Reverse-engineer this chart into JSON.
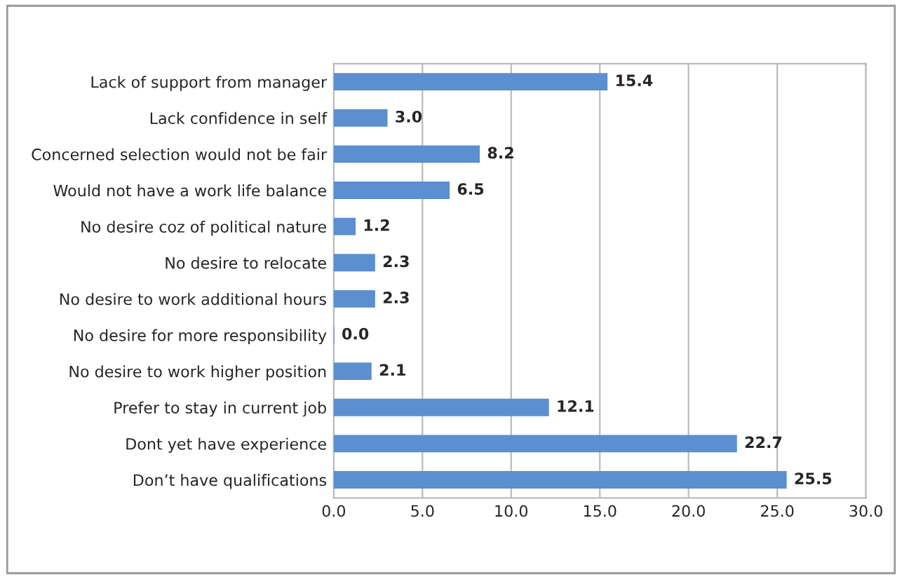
{
  "chart_data": {
    "type": "bar",
    "orientation": "horizontal",
    "categories": [
      "Lack of support from manager",
      "Lack confidence in self",
      "Concerned selection would not be fair",
      "Would not have a work life balance",
      "No desire coz of political nature",
      "No desire to relocate",
      "No desire to work additional hours",
      "No desire for more responsibility",
      "No desire to work higher position",
      "Prefer to stay in current job",
      "Dont yet have experience",
      "Don’t have qualifications"
    ],
    "values": [
      15.4,
      3.0,
      8.2,
      6.5,
      1.2,
      2.3,
      2.3,
      0.0,
      2.1,
      12.1,
      22.7,
      25.5
    ],
    "value_labels": [
      "15.4",
      "3.0",
      "8.2",
      "6.5",
      "1.2",
      "2.3",
      "2.3",
      "0.0",
      "2.1",
      "12.1",
      "22.7",
      "25.5"
    ],
    "color": "#5b8fd0",
    "xlim": [
      0,
      30
    ],
    "xticks": [
      {
        "value": 0,
        "label": "0.0"
      },
      {
        "value": 5,
        "label": "5.0"
      },
      {
        "value": 10,
        "label": "10.0"
      },
      {
        "value": 15,
        "label": "15.0"
      },
      {
        "value": 20,
        "label": "20.0"
      },
      {
        "value": 25,
        "label": "25.0"
      },
      {
        "value": 30,
        "label": "30.0"
      }
    ],
    "grid": "x"
  }
}
